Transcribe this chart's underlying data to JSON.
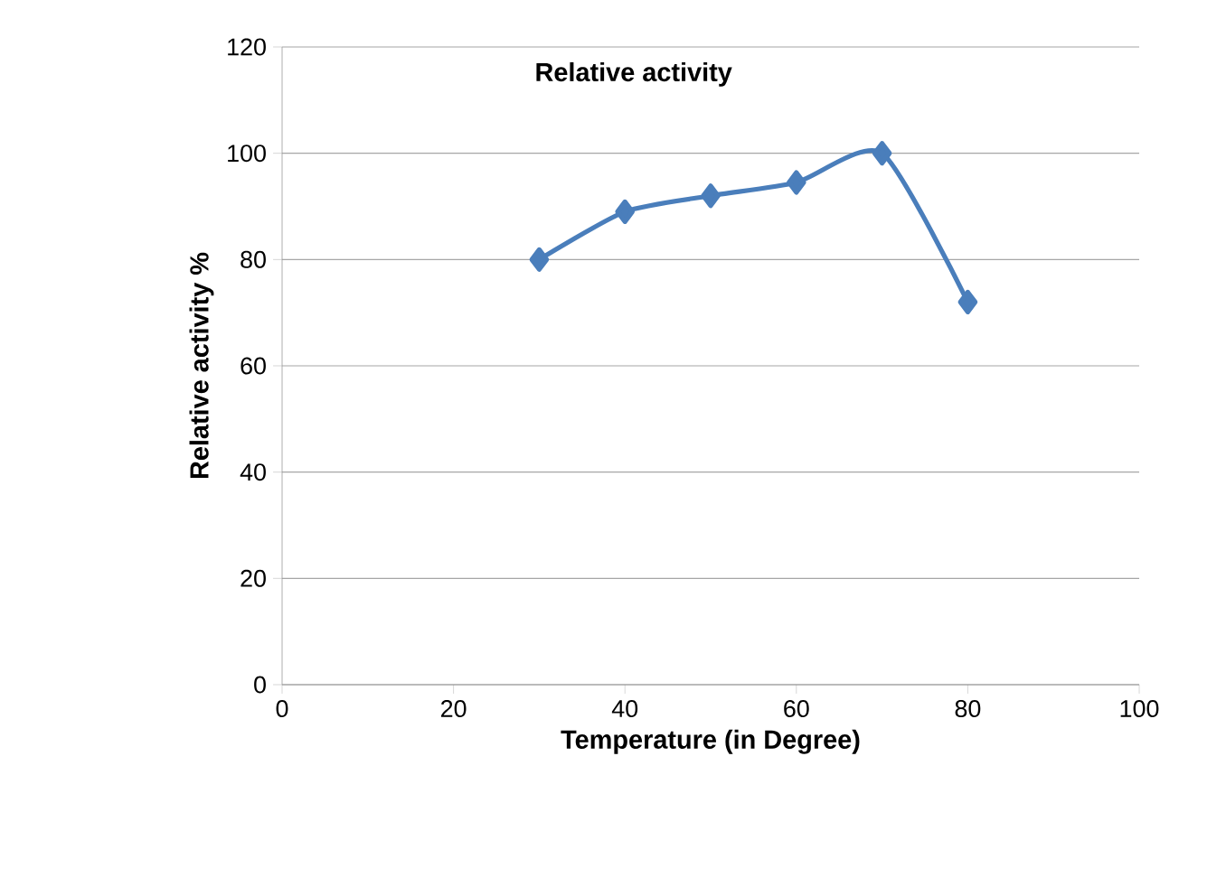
{
  "chart_data": {
    "type": "line",
    "title": "Relative activity",
    "xlabel": "Temperature (in Degree)",
    "ylabel": "Relative activity %",
    "x": [
      30,
      40,
      50,
      60,
      70,
      80
    ],
    "series": [
      {
        "color": "#4a7ebb",
        "values": [
          80,
          89,
          92,
          94.5,
          100,
          72
        ]
      }
    ],
    "xlim": [
      0,
      100
    ],
    "xticks": [
      0,
      20,
      40,
      60,
      80,
      100
    ],
    "ylim": [
      0,
      120
    ],
    "yticks": [
      0,
      20,
      40,
      60,
      80,
      100,
      120
    ],
    "grid": "y",
    "marker": "diamond",
    "line_style": "solid"
  }
}
